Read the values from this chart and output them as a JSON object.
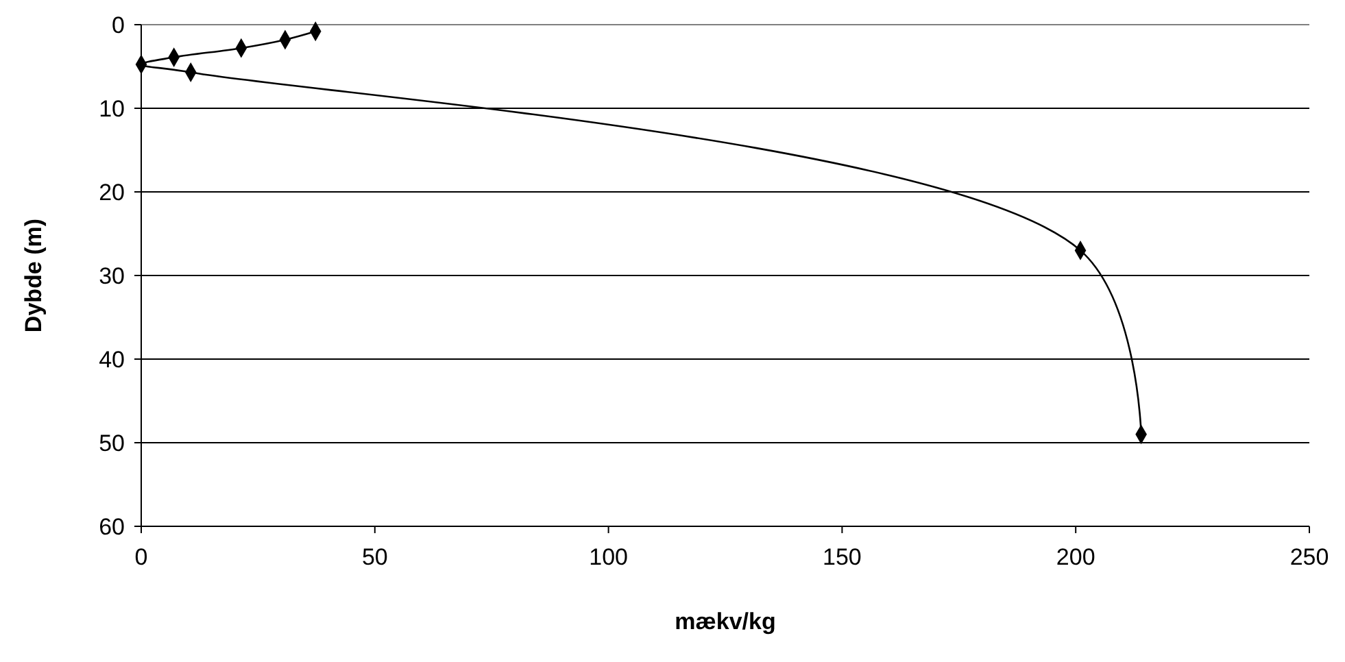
{
  "chart_data": {
    "type": "line",
    "xlabel": "mækv/kg",
    "ylabel": "Dybde (m)",
    "xlim": [
      0,
      250
    ],
    "xticks": [
      0,
      50,
      100,
      150,
      200,
      250
    ],
    "ylim": [
      60,
      0
    ],
    "yticks": [
      0,
      10,
      20,
      30,
      40,
      50,
      60
    ],
    "grid": "y",
    "marker": "diamond",
    "line_style": "solid",
    "series": [
      {
        "color": "#000000",
        "x": [
          37.3,
          30.8,
          21.4,
          7,
          0,
          10.6,
          201,
          214
        ],
        "values": [
          0.8,
          1.8,
          2.8,
          3.9,
          4.75,
          5.7,
          27,
          49
        ]
      }
    ]
  }
}
